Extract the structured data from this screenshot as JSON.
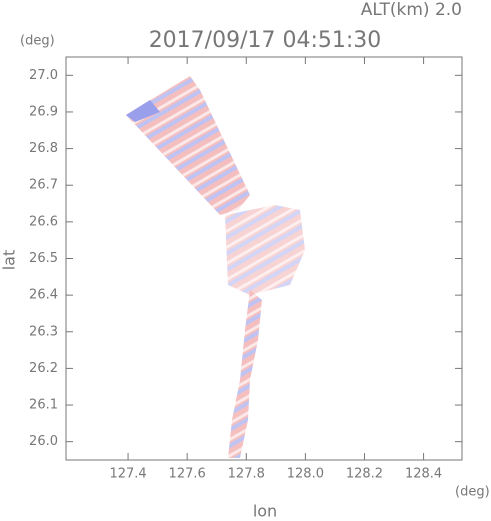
{
  "chart_data": {
    "type": "field",
    "title": "2017/09/17 04:51:30",
    "subtitle": "ALT(km) 2.0",
    "x_label": "lon",
    "y_label": "lat",
    "x_unit": "(deg)",
    "y_unit": "(deg)",
    "xlim": [
      127.19,
      128.53
    ],
    "ylim": [
      25.95,
      27.05
    ],
    "xticks": [
      127.4,
      127.6,
      127.8,
      {
        "value": 128.0,
        "label": "128.0"
      },
      128.2,
      128.4
    ],
    "yticks": [
      {
        "value": 26.0,
        "label": "26.0"
      },
      26.1,
      26.2,
      26.3,
      26.4,
      26.5,
      26.6,
      26.7,
      26.8,
      26.9,
      {
        "value": 27.0,
        "label": "27.0"
      }
    ]
  }
}
